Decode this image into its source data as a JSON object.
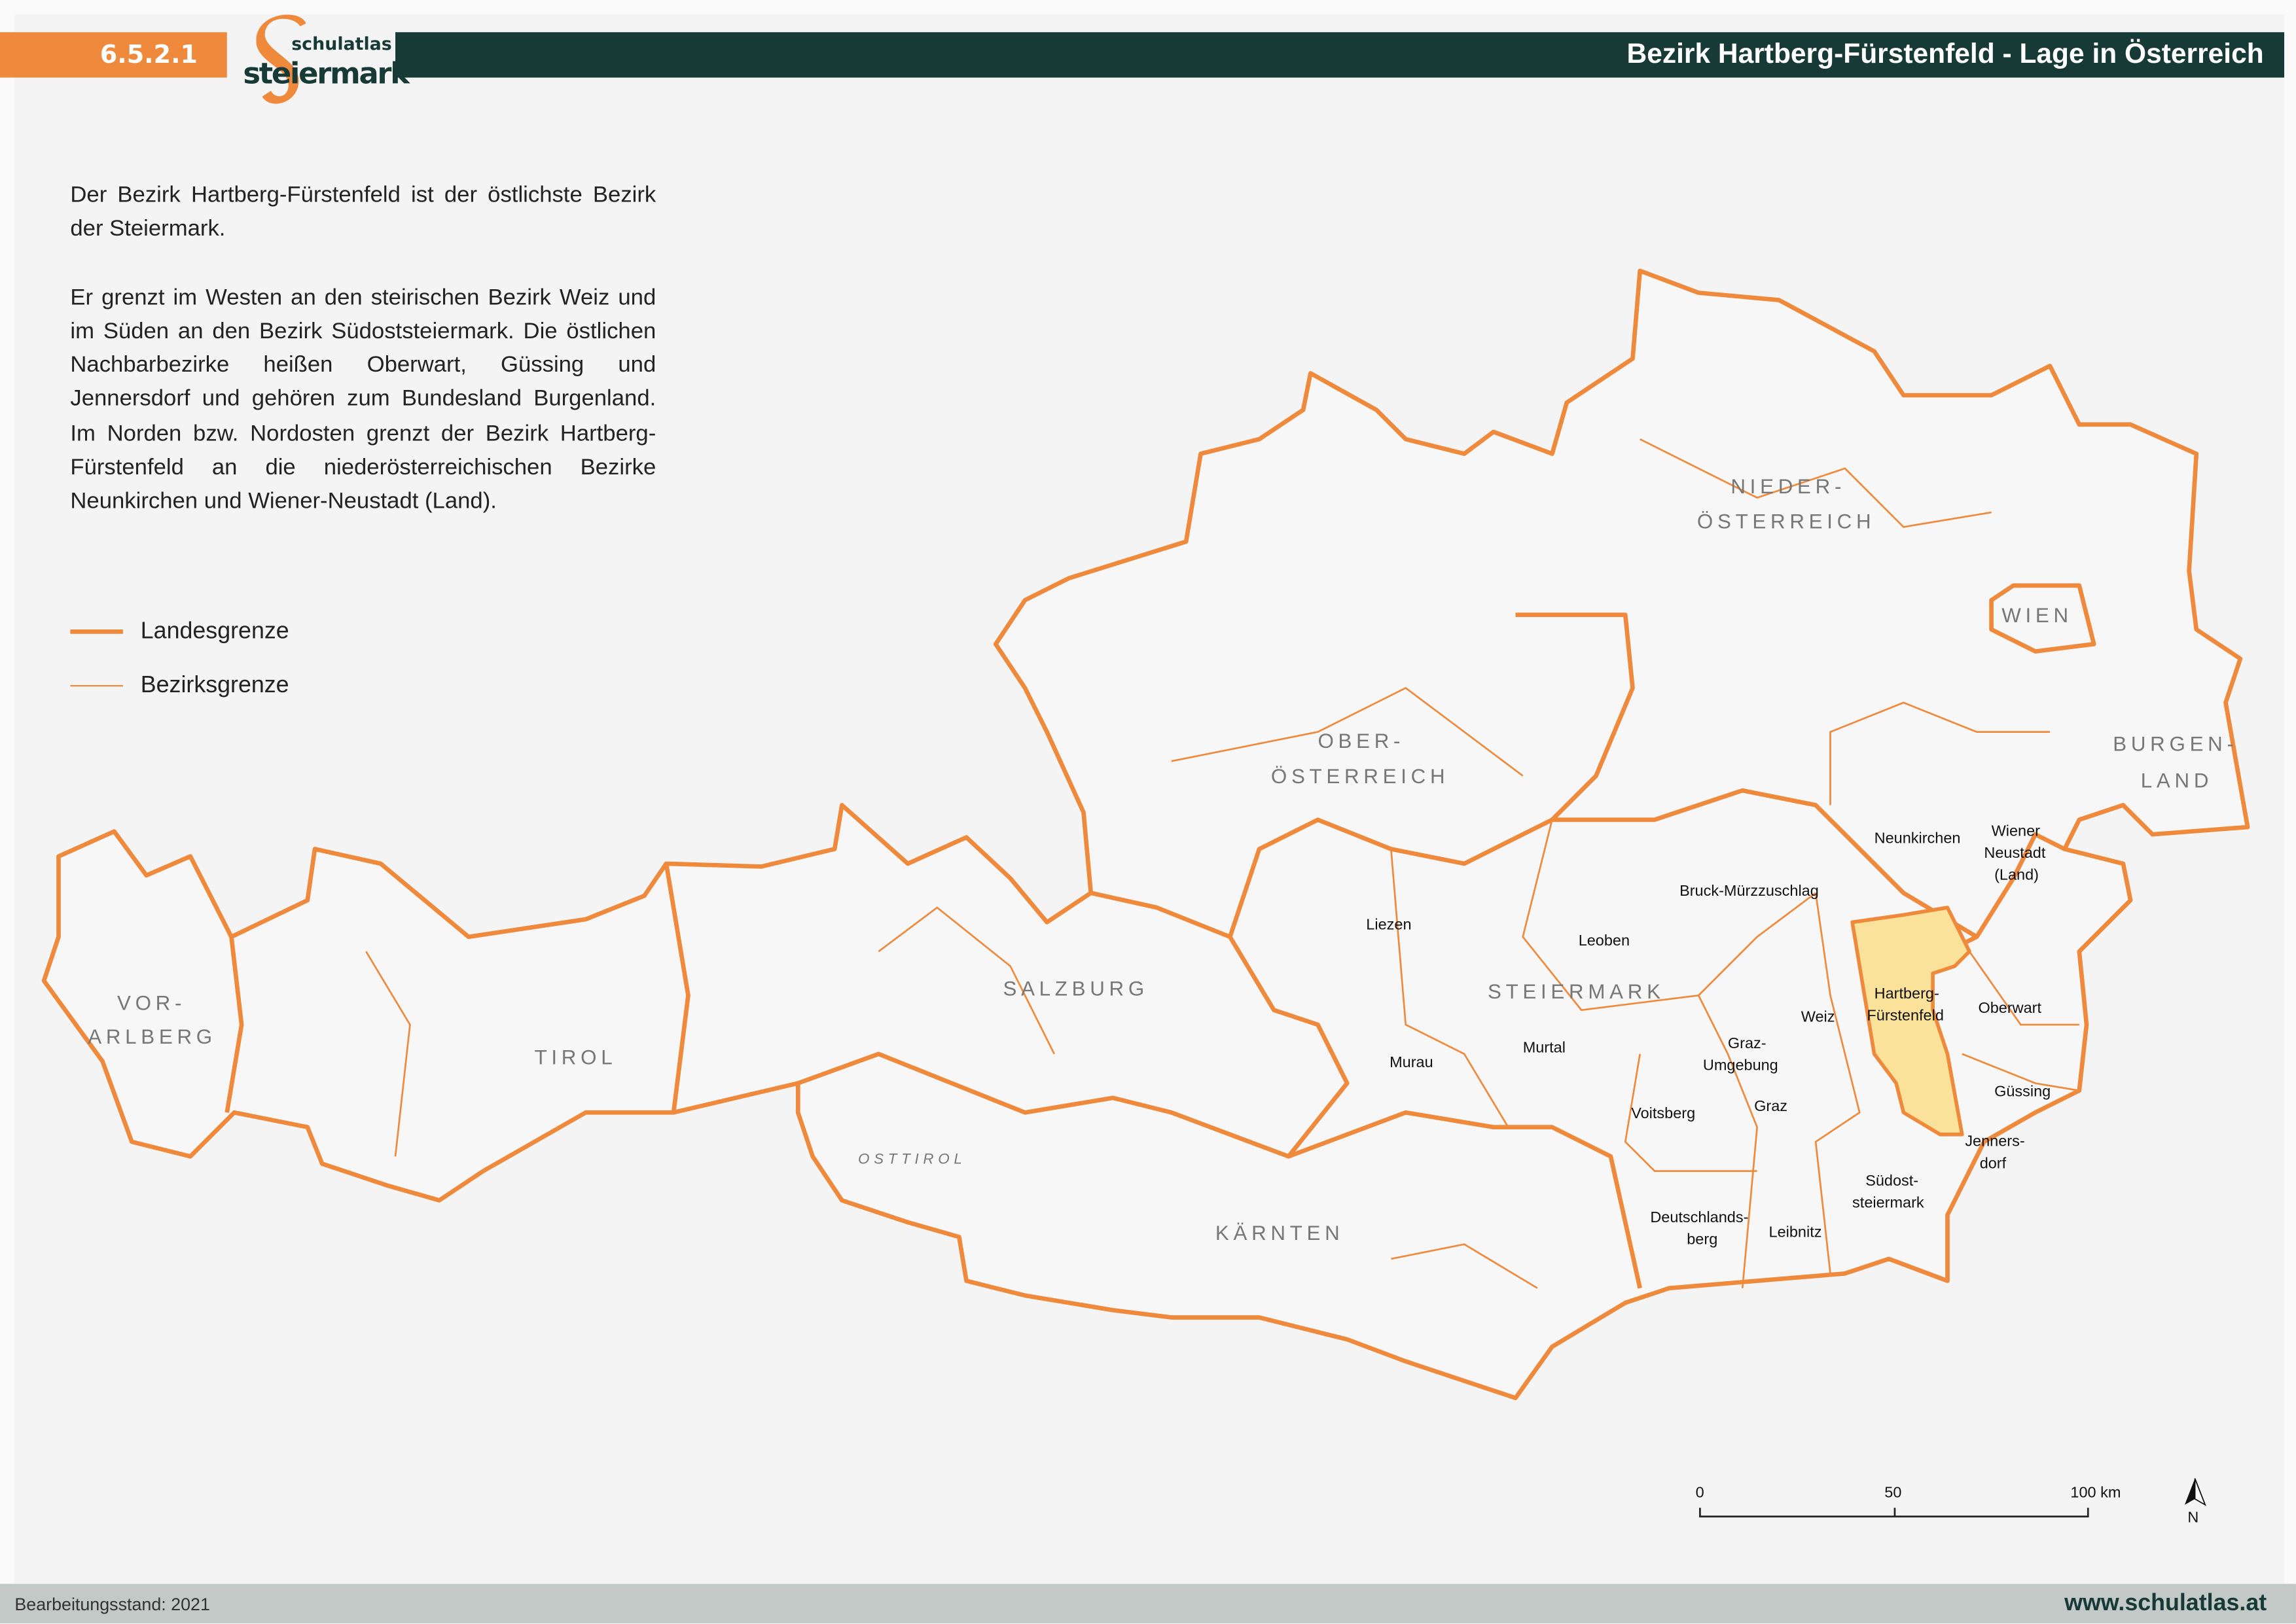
{
  "header": {
    "chapter_number": "6.5.2.1",
    "logo_text_top": "schulatlas",
    "logo_text_bottom": "steiermark",
    "title": "Bezirk Hartberg-Fürstenfeld - Lage in Österreich"
  },
  "description": {
    "paragraph_1": "Der Bezirk Hartberg-Fürstenfeld ist der östlichste Bezirk der Steiermark.",
    "paragraph_2": "Er grenzt im Westen an den steirischen Bezirk Weiz und im Süden an den Bezirk Südoststeiermark. Die östlichen Nachbarbezirke heißen Oberwart, Güssing und Jennersdorf und gehören zum Bundesland Burgenland. Im Norden bzw. Nordosten grenzt der Bezirk Hartberg-Fürstenfeld an die niederösterreichischen Bezirke Neunkirchen und Wiener-Neustadt (Land)."
  },
  "legend": {
    "state_border": "Landesgrenze",
    "district_border": "Bezirksgrenze"
  },
  "colors": {
    "border": "#ef8a3c",
    "highlight": "#fae29a",
    "header_dark": "#173a36",
    "header_orange": "#ef8a3c"
  },
  "map": {
    "highlighted_district": "Hartberg-Fürstenfeld",
    "states": {
      "vorarlberg_1": "VOR-",
      "vorarlberg_2": "ARLBERG",
      "tirol": "TIROL",
      "osttirol": "OSTTIROL",
      "salzburg": "SALZBURG",
      "kaernten": "KÄRNTEN",
      "steiermark": "STEIERMARK",
      "oberoesterreich_1": "OBER-",
      "oberoesterreich_2": "ÖSTERREICH",
      "niederoesterreich_1": "NIEDER-",
      "niederoesterreich_2": "ÖSTERREICH",
      "wien": "WIEN",
      "burgenland_1": "BURGEN-",
      "burgenland_2": "LAND"
    },
    "districts": {
      "liezen": "Liezen",
      "bruck": "Bruck-Mürzzuschlag",
      "leoben": "Leoben",
      "murau": "Murau",
      "murtal": "Murtal",
      "graz_umgebung_1": "Graz-",
      "graz_umgebung_2": "Umgebung",
      "graz": "Graz",
      "voitsberg": "Voitsberg",
      "weiz": "Weiz",
      "hartberg_1": "Hartberg-",
      "hartberg_2": "Fürstenfeld",
      "deutschlandsberg_1": "Deutschlands-",
      "deutschlandsberg_2": "berg",
      "leibnitz": "Leibnitz",
      "suedost_1": "Südost-",
      "suedost_2": "steiermark",
      "neunkirchen": "Neunkirchen",
      "wr_neustadt_1": "Wiener",
      "wr_neustadt_2": "Neustadt",
      "wr_neustadt_3": "(Land)",
      "oberwart": "Oberwart",
      "guessing": "Güssing",
      "jennersdorf_1": "Jenners-",
      "jennersdorf_2": "dorf"
    },
    "scale_bar": {
      "tick_0": "0",
      "tick_50": "50",
      "tick_100": "100 km"
    },
    "north_arrow": "N"
  },
  "footer": {
    "edit_status": "Bearbeitungsstand: 2021",
    "website": "www.schulatlas.at"
  }
}
